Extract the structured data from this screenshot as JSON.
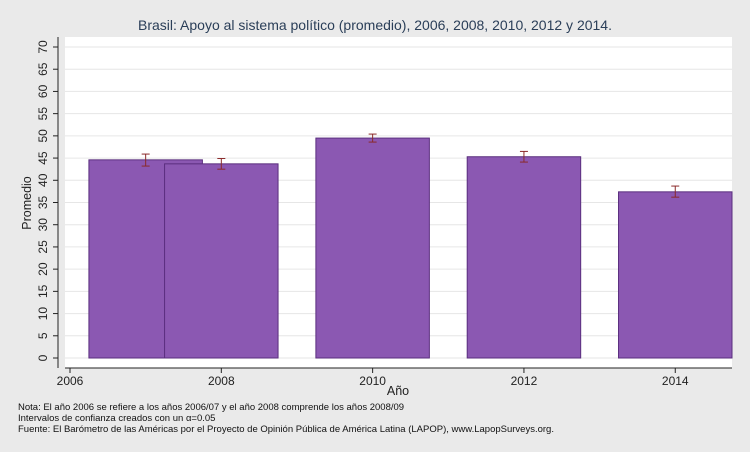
{
  "chart_data": {
    "type": "bar",
    "title": "Brasil: Apoyo al sistema político (promedio), 2006, 2008, 2010, 2012 y 2014.",
    "xlabel": "Año",
    "ylabel": "Promedio",
    "x_ticks": [
      2006,
      2008,
      2010,
      2012,
      2014
    ],
    "y_ticks": [
      0,
      5,
      10,
      15,
      20,
      25,
      30,
      35,
      40,
      45,
      50,
      55,
      60,
      65,
      70
    ],
    "xlim": [
      2006,
      2014.75
    ],
    "ylim": [
      0,
      72
    ],
    "grid": true,
    "bars": [
      {
        "label": "2006",
        "x_start": 2006.25,
        "x_end": 2007.75,
        "value": 44.6,
        "ci_low": 43.2,
        "ci_high": 45.9
      },
      {
        "label": "2008",
        "x_start": 2007.25,
        "x_end": 2008.75,
        "value": 43.7,
        "ci_low": 42.5,
        "ci_high": 44.9
      },
      {
        "label": "2010",
        "x_start": 2009.25,
        "x_end": 2010.75,
        "value": 49.5,
        "ci_low": 48.6,
        "ci_high": 50.4
      },
      {
        "label": "2012",
        "x_start": 2011.25,
        "x_end": 2012.75,
        "value": 45.3,
        "ci_low": 44.1,
        "ci_high": 46.5
      },
      {
        "label": "2014",
        "x_start": 2013.25,
        "x_end": 2014.75,
        "value": 37.4,
        "ci_low": 36.2,
        "ci_high": 38.7
      }
    ],
    "colors": {
      "bar_fill": "#8b58b2",
      "bar_stroke": "#5a2e7e",
      "error_bar": "#8b2a2a",
      "plot_bg": "#ffffff",
      "outer_bg": "#eaeaea",
      "grid": "#e6e6e6"
    }
  },
  "notes": {
    "line1": "Nota: El año 2006 se refiere a los años 2006/07 y el año 2008 comprende los años 2008/09",
    "line2": "Intervalos de confianza creados con un α=0.05",
    "line3": "Fuente: El Barómetro de las Américas por el Proyecto de Opinión Pública de América Latina (LAPOP), www.LapopSurveys.org."
  }
}
